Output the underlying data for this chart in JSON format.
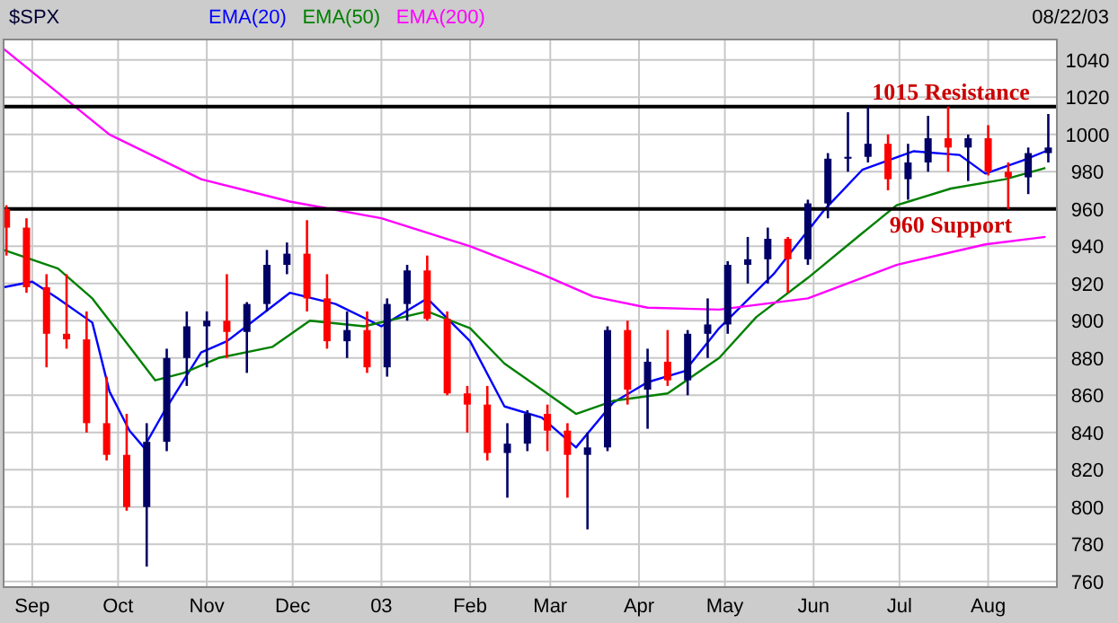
{
  "chart_data": {
    "type": "candlestick",
    "title": "$SPX",
    "legend": "top",
    "grid": true,
    "x": [
      "2002-08-23",
      "2002-08-30",
      "2002-09-06",
      "2002-09-13",
      "2002-09-20",
      "2002-09-27",
      "2002-10-04",
      "2002-10-11",
      "2002-10-18",
      "2002-10-25",
      "2002-11-01",
      "2002-11-08",
      "2002-11-15",
      "2002-11-22",
      "2002-11-29",
      "2002-12-06",
      "2002-12-13",
      "2002-12-20",
      "2002-12-27",
      "2003-01-03",
      "2003-01-10",
      "2003-01-17",
      "2003-01-24",
      "2003-01-31",
      "2003-02-07",
      "2003-02-14",
      "2003-02-21",
      "2003-02-28",
      "2003-03-07",
      "2003-03-14",
      "2003-03-21",
      "2003-03-28",
      "2003-04-04",
      "2003-04-11",
      "2003-04-18",
      "2003-04-25",
      "2003-05-02",
      "2003-05-09",
      "2003-05-16",
      "2003-05-23",
      "2003-05-30",
      "2003-06-06",
      "2003-06-13",
      "2003-06-20",
      "2003-06-27",
      "2003-07-04",
      "2003-07-11",
      "2003-07-18",
      "2003-07-25",
      "2003-08-01",
      "2003-08-08",
      "2003-08-15",
      "2003-08-22"
    ],
    "ohlc": [
      [
        960,
        962,
        935,
        950
      ],
      [
        950,
        955,
        915,
        918
      ],
      [
        918,
        925,
        875,
        893
      ],
      [
        893,
        925,
        885,
        890
      ],
      [
        890,
        905,
        840,
        845
      ],
      [
        845,
        870,
        825,
        828
      ],
      [
        828,
        850,
        798,
        800
      ],
      [
        800,
        845,
        768,
        835
      ],
      [
        835,
        885,
        830,
        880
      ],
      [
        880,
        905,
        865,
        897
      ],
      [
        897,
        905,
        875,
        900
      ],
      [
        900,
        925,
        880,
        894
      ],
      [
        894,
        910,
        872,
        909
      ],
      [
        909,
        938,
        905,
        930
      ],
      [
        930,
        942,
        925,
        936
      ],
      [
        936,
        954,
        905,
        912
      ],
      [
        912,
        925,
        885,
        889
      ],
      [
        889,
        905,
        880,
        895
      ],
      [
        895,
        905,
        872,
        875
      ],
      [
        875,
        912,
        870,
        909
      ],
      [
        909,
        930,
        900,
        927
      ],
      [
        927,
        935,
        900,
        901
      ],
      [
        901,
        905,
        860,
        861
      ],
      [
        861,
        865,
        840,
        855
      ],
      [
        855,
        865,
        825,
        829
      ],
      [
        829,
        845,
        805,
        834
      ],
      [
        834,
        852,
        830,
        850
      ],
      [
        850,
        855,
        830,
        841
      ],
      [
        841,
        845,
        805,
        828
      ],
      [
        828,
        840,
        788,
        832
      ],
      [
        832,
        897,
        830,
        895
      ],
      [
        895,
        900,
        855,
        863
      ],
      [
        863,
        885,
        842,
        878
      ],
      [
        878,
        895,
        865,
        868
      ],
      [
        868,
        895,
        860,
        893
      ],
      [
        893,
        912,
        880,
        898
      ],
      [
        898,
        932,
        893,
        930
      ],
      [
        930,
        945,
        920,
        933
      ],
      [
        933,
        950,
        920,
        944
      ],
      [
        944,
        945,
        915,
        933
      ],
      [
        933,
        965,
        930,
        963
      ],
      [
        963,
        990,
        955,
        987
      ],
      [
        987,
        1012,
        980,
        988
      ],
      [
        988,
        1015,
        985,
        995
      ],
      [
        995,
        1000,
        970,
        976
      ],
      [
        976,
        995,
        965,
        985
      ],
      [
        985,
        1010,
        980,
        998
      ],
      [
        998,
        1015,
        980,
        993
      ],
      [
        993,
        1000,
        975,
        998
      ],
      [
        998,
        1005,
        978,
        980
      ],
      [
        980,
        985,
        960,
        977
      ],
      [
        977,
        993,
        968,
        990
      ],
      [
        990,
        1011,
        985,
        993
      ]
    ],
    "colors": [
      "#ff0000",
      "#ff0000",
      "#ff0000",
      "#ff0000",
      "#ff0000",
      "#ff0000",
      "#ff0000",
      "#000066",
      "#000066",
      "#000066",
      "#000066",
      "#ff0000",
      "#000066",
      "#000066",
      "#000066",
      "#ff0000",
      "#ff0000",
      "#000066",
      "#ff0000",
      "#000066",
      "#000066",
      "#ff0000",
      "#ff0000",
      "#ff0000",
      "#ff0000",
      "#000066",
      "#000066",
      "#ff0000",
      "#ff0000",
      "#000066",
      "#000066",
      "#ff0000",
      "#000066",
      "#ff0000",
      "#000066",
      "#000066",
      "#000066",
      "#000066",
      "#000066",
      "#ff0000",
      "#000066",
      "#000066",
      "#000066",
      "#000066",
      "#ff0000",
      "#000066",
      "#000066",
      "#ff0000",
      "#000066",
      "#ff0000",
      "#ff0000",
      "#000066",
      "#000066"
    ],
    "series": [
      {
        "name": "EMA(20)",
        "type": "line",
        "color": "#0000ff",
        "x": [
          "2002-08-22",
          "2002-09-01",
          "2002-09-10",
          "2002-09-22",
          "2002-09-28",
          "2002-10-05",
          "2002-10-10",
          "2002-10-17",
          "2002-10-30",
          "2002-11-08",
          "2002-11-30",
          "2002-12-16",
          "2003-01-01",
          "2003-01-17",
          "2003-02-01",
          "2003-02-13",
          "2003-02-26",
          "2003-03-10",
          "2003-03-23",
          "2003-04-04",
          "2003-04-17",
          "2003-04-29",
          "2003-05-18",
          "2003-06-05",
          "2003-06-18",
          "2003-07-06",
          "2003-07-22",
          "2003-07-31",
          "2003-08-13",
          "2003-08-21"
        ],
        "values": [
          918,
          921,
          912,
          899,
          862,
          841,
          832,
          851,
          883,
          889,
          915,
          909,
          897,
          912,
          889,
          854,
          848,
          832,
          856,
          867,
          873,
          896,
          925,
          960,
          981,
          991,
          989,
          979,
          986,
          991
        ]
      },
      {
        "name": "EMA(50)",
        "type": "line",
        "color": "#008000",
        "x": [
          "2002-08-22",
          "2002-09-10",
          "2002-09-22",
          "2002-10-05",
          "2002-10-14",
          "2002-10-24",
          "2002-11-05",
          "2002-11-24",
          "2002-12-07",
          "2002-12-26",
          "2003-01-17",
          "2003-02-01",
          "2003-02-13",
          "2003-02-26",
          "2003-03-10",
          "2003-03-23",
          "2003-04-11",
          "2003-04-29",
          "2003-05-12",
          "2003-05-30",
          "2003-06-18",
          "2003-06-30",
          "2003-07-19",
          "2003-08-07",
          "2003-08-21"
        ],
        "values": [
          938,
          928,
          912,
          886,
          868,
          872,
          880,
          886,
          900,
          897,
          905,
          896,
          877,
          863,
          850,
          857,
          861,
          880,
          902,
          923,
          947,
          962,
          971,
          976,
          982
        ]
      },
      {
        "name": "EMA(200)",
        "type": "line",
        "color": "#ff00ff",
        "x": [
          "2002-08-22",
          "2002-09-28",
          "2002-10-30",
          "2002-11-30",
          "2003-01-01",
          "2003-02-01",
          "2003-02-26",
          "2003-03-16",
          "2003-04-04",
          "2003-04-29",
          "2003-05-30",
          "2003-06-30",
          "2003-07-31",
          "2003-08-21"
        ],
        "values": [
          1046,
          1000,
          976,
          964,
          955,
          940,
          925,
          913,
          907,
          906,
          912,
          930,
          941,
          945
        ]
      }
    ],
    "xlim": [
      "2002-08-22",
      "2003-08-25"
    ],
    "xticks": [
      {
        "value": "2002-09-01",
        "label": "Sep"
      },
      {
        "value": "2002-10-01",
        "label": "Oct"
      },
      {
        "value": "2002-11-01",
        "label": "Nov"
      },
      {
        "value": "2002-12-01",
        "label": "Dec"
      },
      {
        "value": "2003-01-01",
        "label": "03"
      },
      {
        "value": "2003-02-01",
        "label": "Feb"
      },
      {
        "value": "2003-03-01",
        "label": "Mar"
      },
      {
        "value": "2003-04-01",
        "label": "Apr"
      },
      {
        "value": "2003-05-01",
        "label": "May"
      },
      {
        "value": "2003-06-01",
        "label": "Jun"
      },
      {
        "value": "2003-07-01",
        "label": "Jul"
      },
      {
        "value": "2003-08-01",
        "label": "Aug"
      }
    ],
    "ylim": [
      757,
      1051
    ],
    "yticks": [
      760,
      780,
      800,
      820,
      840,
      860,
      880,
      900,
      920,
      940,
      960,
      980,
      1000,
      1020,
      1040
    ],
    "ref_lines": [
      {
        "axis": "y",
        "value": 1015,
        "label": "1015 Resistance",
        "color": "#000000"
      },
      {
        "axis": "y",
        "value": 960,
        "label": "960 Support",
        "color": "#000000"
      }
    ],
    "annotations": [
      "08/22/03"
    ]
  }
}
